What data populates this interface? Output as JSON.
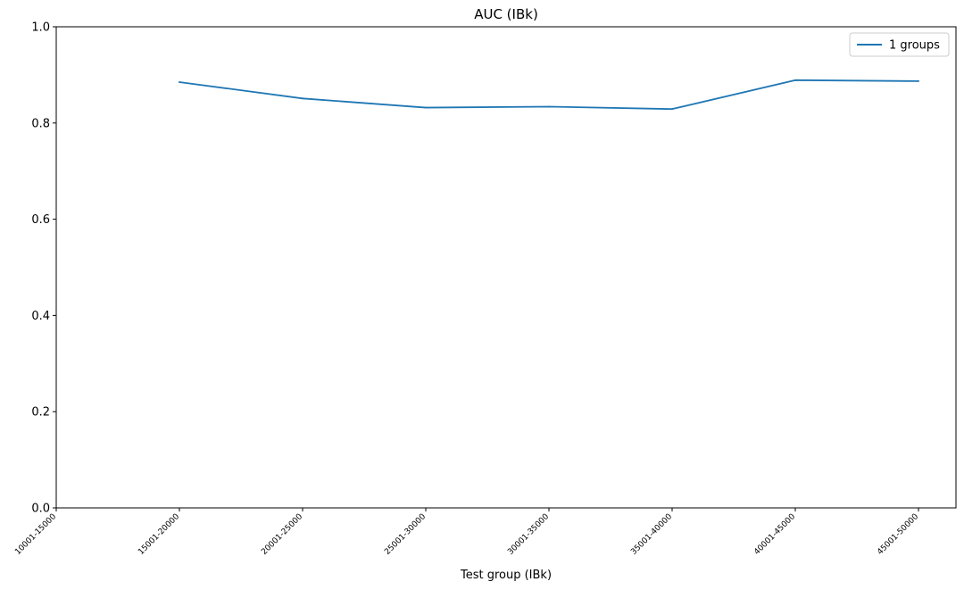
{
  "chart_data": {
    "type": "line",
    "title": "AUC (IBk)",
    "xlabel": "Test group (IBk)",
    "ylabel": "",
    "categories": [
      "10001-15000",
      "15001-20000",
      "20001-25000",
      "25001-30000",
      "30001-35000",
      "35001-40000",
      "40001-45000",
      "45001-50000"
    ],
    "ylim": [
      0.0,
      1.0
    ],
    "yticks": [
      "0.0",
      "0.2",
      "0.4",
      "0.6",
      "0.8",
      "1.0"
    ],
    "series": [
      {
        "name": "1 groups",
        "color": "#1f77b4",
        "values": [
          null,
          0.885,
          0.851,
          0.832,
          0.834,
          0.829,
          0.889,
          0.887
        ]
      }
    ],
    "legend": "top-right",
    "grid": false
  }
}
